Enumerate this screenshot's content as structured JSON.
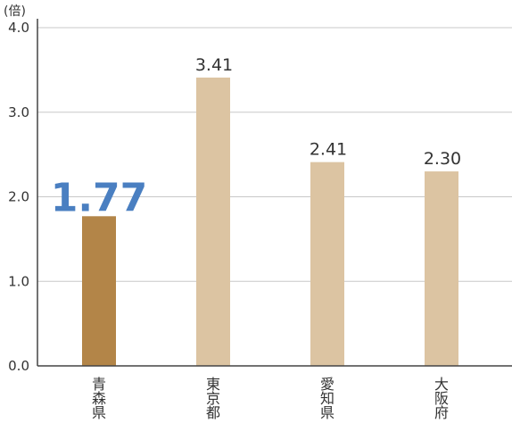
{
  "chart_data": {
    "type": "bar",
    "unit_label": "(倍)",
    "categories": [
      "青森県",
      "東京都",
      "愛知県",
      "大阪府"
    ],
    "values": [
      1.77,
      3.41,
      2.41,
      2.3
    ],
    "value_labels": [
      "1.77",
      "3.41",
      "2.41",
      "2.30"
    ],
    "highlight_index": 0,
    "ylim": [
      0,
      4
    ],
    "yticks": [
      "0.0",
      "1.0",
      "2.0",
      "3.0",
      "4.0"
    ],
    "grid": true,
    "colors": {
      "highlight_bar": "#b38548",
      "bar": "#dcc4a2",
      "highlight_label": "#4a7fc1",
      "grid": "#c8c8c8",
      "axis": "#444444"
    }
  }
}
